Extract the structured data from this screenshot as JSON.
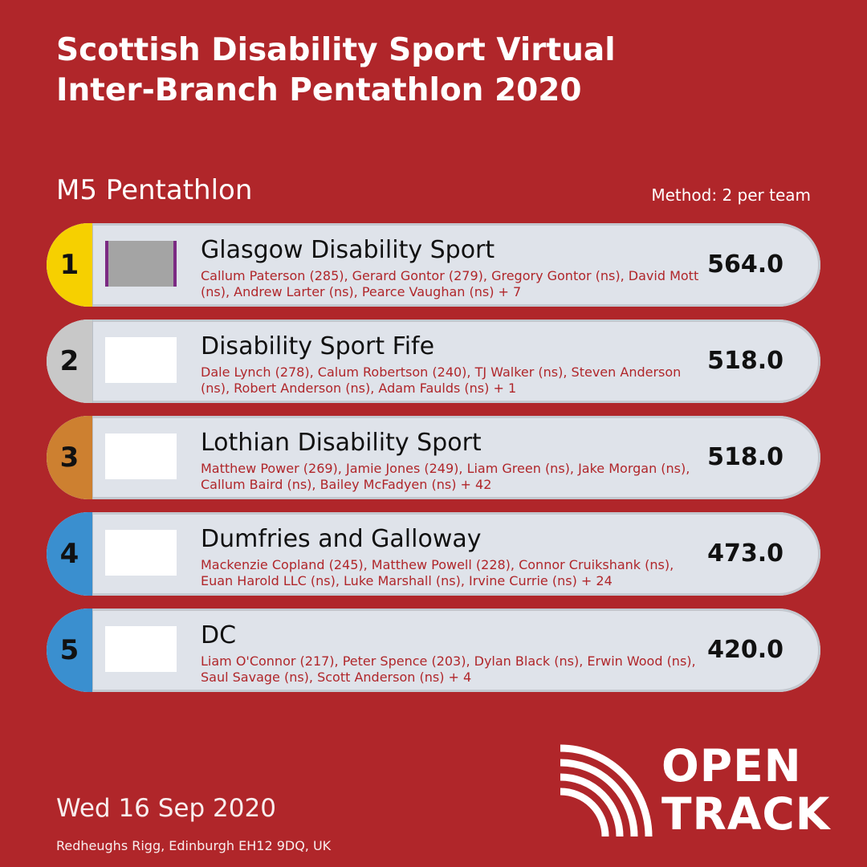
{
  "title": {
    "line1": "Scottish Disability Sport Virtual",
    "line2": "Inter-Branch Pentathlon 2020"
  },
  "event_name": "M5 Pentathlon",
  "method": "Method: 2 per team",
  "colors": {
    "background": "#b0262a",
    "row_bg": "#dfe3ea",
    "athlete_text": "#b0262a",
    "gold": "#f6d000",
    "silver": "#c8c8c8",
    "bronze": "#cd8030",
    "other": "#3a8fcf"
  },
  "results": [
    {
      "rank": "1",
      "team": "Glasgow Disability Sport",
      "athletes": "Callum Paterson (285), Gerard Gontor (279), Gregory Gontor (ns), David Mott (ns), Andrew Larter (ns), Pearce Vaughan (ns) + 7",
      "score": "564.0",
      "rank_color": "#f6d000"
    },
    {
      "rank": "2",
      "team": "Disability Sport Fife",
      "athletes": "Dale Lynch (278), Calum Robertson (240), TJ Walker (ns), Steven Anderson (ns), Robert Anderson (ns), Adam Faulds (ns) + 1",
      "score": "518.0",
      "rank_color": "#c8c8c8"
    },
    {
      "rank": "3",
      "team": "Lothian Disability Sport",
      "athletes": "Matthew Power (269), Jamie Jones (249), Liam Green (ns), Jake Morgan (ns), Callum Baird (ns), Bailey McFadyen (ns) + 42",
      "score": "518.0",
      "rank_color": "#cd8030"
    },
    {
      "rank": "4",
      "team": "Dumfries and Galloway",
      "athletes": "Mackenzie Copland (245), Matthew Powell (228), Connor Cruikshank (ns), Euan Harold LLC (ns), Luke Marshall (ns), Irvine Currie (ns) + 24",
      "score": "473.0",
      "rank_color": "#3a8fcf"
    },
    {
      "rank": "5",
      "team": "DC",
      "athletes": "Liam O'Connor (217), Peter Spence (203), Dylan Black (ns), Erwin Wood (ns), Saul Savage (ns), Scott Anderson (ns) + 4",
      "score": "420.0",
      "rank_color": "#3a8fcf"
    }
  ],
  "date": "Wed 16 Sep 2020",
  "venue": "Redheughs Rigg, Edinburgh EH12 9DQ, UK",
  "brand": {
    "line1": "OPEN",
    "line2": "TRACK",
    "icon": "opentrack-arcs-icon"
  }
}
